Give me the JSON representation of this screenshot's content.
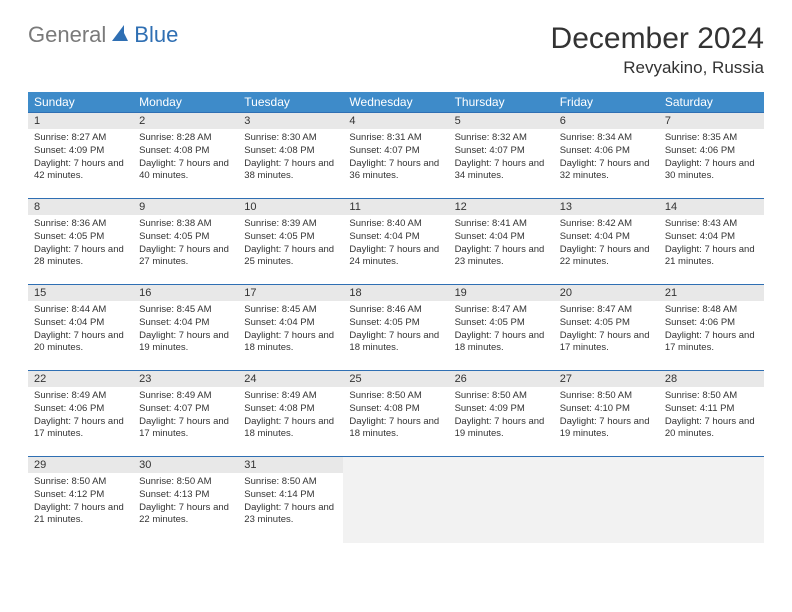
{
  "logo": {
    "text_general": "General",
    "text_blue": "Blue",
    "icon_color": "#2f6fb3"
  },
  "header": {
    "month_title": "December 2024",
    "location": "Revyakino, Russia"
  },
  "colors": {
    "header_bg": "#3e8bc9",
    "header_text": "#ffffff",
    "border": "#2f6fb3",
    "daynum_bg": "#e8e8e8",
    "empty_bg": "#f2f2f2",
    "body_text": "#333333"
  },
  "weekdays": [
    "Sunday",
    "Monday",
    "Tuesday",
    "Wednesday",
    "Thursday",
    "Friday",
    "Saturday"
  ],
  "weeks": [
    [
      {
        "day": "1",
        "sunrise": "Sunrise: 8:27 AM",
        "sunset": "Sunset: 4:09 PM",
        "daylight": "Daylight: 7 hours and 42 minutes."
      },
      {
        "day": "2",
        "sunrise": "Sunrise: 8:28 AM",
        "sunset": "Sunset: 4:08 PM",
        "daylight": "Daylight: 7 hours and 40 minutes."
      },
      {
        "day": "3",
        "sunrise": "Sunrise: 8:30 AM",
        "sunset": "Sunset: 4:08 PM",
        "daylight": "Daylight: 7 hours and 38 minutes."
      },
      {
        "day": "4",
        "sunrise": "Sunrise: 8:31 AM",
        "sunset": "Sunset: 4:07 PM",
        "daylight": "Daylight: 7 hours and 36 minutes."
      },
      {
        "day": "5",
        "sunrise": "Sunrise: 8:32 AM",
        "sunset": "Sunset: 4:07 PM",
        "daylight": "Daylight: 7 hours and 34 minutes."
      },
      {
        "day": "6",
        "sunrise": "Sunrise: 8:34 AM",
        "sunset": "Sunset: 4:06 PM",
        "daylight": "Daylight: 7 hours and 32 minutes."
      },
      {
        "day": "7",
        "sunrise": "Sunrise: 8:35 AM",
        "sunset": "Sunset: 4:06 PM",
        "daylight": "Daylight: 7 hours and 30 minutes."
      }
    ],
    [
      {
        "day": "8",
        "sunrise": "Sunrise: 8:36 AM",
        "sunset": "Sunset: 4:05 PM",
        "daylight": "Daylight: 7 hours and 28 minutes."
      },
      {
        "day": "9",
        "sunrise": "Sunrise: 8:38 AM",
        "sunset": "Sunset: 4:05 PM",
        "daylight": "Daylight: 7 hours and 27 minutes."
      },
      {
        "day": "10",
        "sunrise": "Sunrise: 8:39 AM",
        "sunset": "Sunset: 4:05 PM",
        "daylight": "Daylight: 7 hours and 25 minutes."
      },
      {
        "day": "11",
        "sunrise": "Sunrise: 8:40 AM",
        "sunset": "Sunset: 4:04 PM",
        "daylight": "Daylight: 7 hours and 24 minutes."
      },
      {
        "day": "12",
        "sunrise": "Sunrise: 8:41 AM",
        "sunset": "Sunset: 4:04 PM",
        "daylight": "Daylight: 7 hours and 23 minutes."
      },
      {
        "day": "13",
        "sunrise": "Sunrise: 8:42 AM",
        "sunset": "Sunset: 4:04 PM",
        "daylight": "Daylight: 7 hours and 22 minutes."
      },
      {
        "day": "14",
        "sunrise": "Sunrise: 8:43 AM",
        "sunset": "Sunset: 4:04 PM",
        "daylight": "Daylight: 7 hours and 21 minutes."
      }
    ],
    [
      {
        "day": "15",
        "sunrise": "Sunrise: 8:44 AM",
        "sunset": "Sunset: 4:04 PM",
        "daylight": "Daylight: 7 hours and 20 minutes."
      },
      {
        "day": "16",
        "sunrise": "Sunrise: 8:45 AM",
        "sunset": "Sunset: 4:04 PM",
        "daylight": "Daylight: 7 hours and 19 minutes."
      },
      {
        "day": "17",
        "sunrise": "Sunrise: 8:45 AM",
        "sunset": "Sunset: 4:04 PM",
        "daylight": "Daylight: 7 hours and 18 minutes."
      },
      {
        "day": "18",
        "sunrise": "Sunrise: 8:46 AM",
        "sunset": "Sunset: 4:05 PM",
        "daylight": "Daylight: 7 hours and 18 minutes."
      },
      {
        "day": "19",
        "sunrise": "Sunrise: 8:47 AM",
        "sunset": "Sunset: 4:05 PM",
        "daylight": "Daylight: 7 hours and 18 minutes."
      },
      {
        "day": "20",
        "sunrise": "Sunrise: 8:47 AM",
        "sunset": "Sunset: 4:05 PM",
        "daylight": "Daylight: 7 hours and 17 minutes."
      },
      {
        "day": "21",
        "sunrise": "Sunrise: 8:48 AM",
        "sunset": "Sunset: 4:06 PM",
        "daylight": "Daylight: 7 hours and 17 minutes."
      }
    ],
    [
      {
        "day": "22",
        "sunrise": "Sunrise: 8:49 AM",
        "sunset": "Sunset: 4:06 PM",
        "daylight": "Daylight: 7 hours and 17 minutes."
      },
      {
        "day": "23",
        "sunrise": "Sunrise: 8:49 AM",
        "sunset": "Sunset: 4:07 PM",
        "daylight": "Daylight: 7 hours and 17 minutes."
      },
      {
        "day": "24",
        "sunrise": "Sunrise: 8:49 AM",
        "sunset": "Sunset: 4:08 PM",
        "daylight": "Daylight: 7 hours and 18 minutes."
      },
      {
        "day": "25",
        "sunrise": "Sunrise: 8:50 AM",
        "sunset": "Sunset: 4:08 PM",
        "daylight": "Daylight: 7 hours and 18 minutes."
      },
      {
        "day": "26",
        "sunrise": "Sunrise: 8:50 AM",
        "sunset": "Sunset: 4:09 PM",
        "daylight": "Daylight: 7 hours and 19 minutes."
      },
      {
        "day": "27",
        "sunrise": "Sunrise: 8:50 AM",
        "sunset": "Sunset: 4:10 PM",
        "daylight": "Daylight: 7 hours and 19 minutes."
      },
      {
        "day": "28",
        "sunrise": "Sunrise: 8:50 AM",
        "sunset": "Sunset: 4:11 PM",
        "daylight": "Daylight: 7 hours and 20 minutes."
      }
    ],
    [
      {
        "day": "29",
        "sunrise": "Sunrise: 8:50 AM",
        "sunset": "Sunset: 4:12 PM",
        "daylight": "Daylight: 7 hours and 21 minutes."
      },
      {
        "day": "30",
        "sunrise": "Sunrise: 8:50 AM",
        "sunset": "Sunset: 4:13 PM",
        "daylight": "Daylight: 7 hours and 22 minutes."
      },
      {
        "day": "31",
        "sunrise": "Sunrise: 8:50 AM",
        "sunset": "Sunset: 4:14 PM",
        "daylight": "Daylight: 7 hours and 23 minutes."
      },
      null,
      null,
      null,
      null
    ]
  ]
}
